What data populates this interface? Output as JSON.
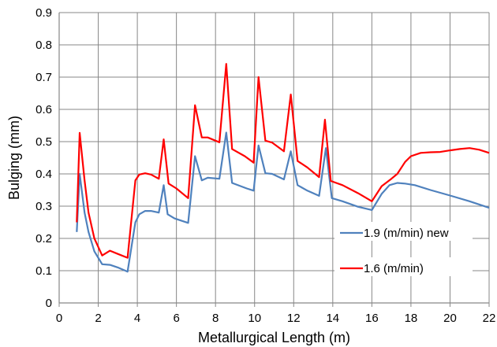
{
  "chart_data": {
    "type": "line",
    "title": "",
    "xlabel": "Metallurgical Length (m)",
    "ylabel": "Bulging (mm)",
    "xlim": [
      0,
      22
    ],
    "ylim": [
      0,
      0.9
    ],
    "x_ticks": [
      "0",
      "2",
      "4",
      "6",
      "8",
      "10",
      "12",
      "14",
      "16",
      "18",
      "20",
      "22"
    ],
    "y_ticks": [
      "0",
      "0.1",
      "0.2",
      "0.3",
      "0.4",
      "0.5",
      "0.6",
      "0.7",
      "0.8",
      "0.9"
    ],
    "grid": true,
    "legend_position": "right",
    "series": [
      {
        "name": "1.9 (m/min) new",
        "color": "#4F81BD",
        "points": [
          [
            0.9,
            0.22
          ],
          [
            1.05,
            0.4
          ],
          [
            1.3,
            0.28
          ],
          [
            1.5,
            0.22
          ],
          [
            1.8,
            0.16
          ],
          [
            2.2,
            0.12
          ],
          [
            2.6,
            0.118
          ],
          [
            3.0,
            0.11
          ],
          [
            3.5,
            0.097
          ],
          [
            3.9,
            0.25
          ],
          [
            4.1,
            0.275
          ],
          [
            4.4,
            0.285
          ],
          [
            4.7,
            0.285
          ],
          [
            5.1,
            0.28
          ],
          [
            5.35,
            0.365
          ],
          [
            5.55,
            0.275
          ],
          [
            5.9,
            0.262
          ],
          [
            6.6,
            0.248
          ],
          [
            6.95,
            0.455
          ],
          [
            7.3,
            0.38
          ],
          [
            7.6,
            0.388
          ],
          [
            8.2,
            0.385
          ],
          [
            8.55,
            0.528
          ],
          [
            8.85,
            0.372
          ],
          [
            9.6,
            0.355
          ],
          [
            9.95,
            0.348
          ],
          [
            10.2,
            0.488
          ],
          [
            10.55,
            0.402
          ],
          [
            10.9,
            0.4
          ],
          [
            11.5,
            0.383
          ],
          [
            11.85,
            0.47
          ],
          [
            12.2,
            0.365
          ],
          [
            12.7,
            0.348
          ],
          [
            13.3,
            0.332
          ],
          [
            13.65,
            0.48
          ],
          [
            13.95,
            0.325
          ],
          [
            14.5,
            0.315
          ],
          [
            15.3,
            0.298
          ],
          [
            16.0,
            0.288
          ],
          [
            16.5,
            0.338
          ],
          [
            16.9,
            0.365
          ],
          [
            17.3,
            0.372
          ],
          [
            17.7,
            0.37
          ],
          [
            18.2,
            0.365
          ],
          [
            19.0,
            0.35
          ],
          [
            20.0,
            0.333
          ],
          [
            21.0,
            0.315
          ],
          [
            22.0,
            0.295
          ]
        ]
      },
      {
        "name": "1.6 (m/min)",
        "color": "#FF0000",
        "points": [
          [
            0.9,
            0.25
          ],
          [
            1.05,
            0.527
          ],
          [
            1.3,
            0.38
          ],
          [
            1.5,
            0.28
          ],
          [
            1.8,
            0.2
          ],
          [
            2.2,
            0.147
          ],
          [
            2.6,
            0.162
          ],
          [
            3.0,
            0.152
          ],
          [
            3.5,
            0.14
          ],
          [
            3.9,
            0.38
          ],
          [
            4.1,
            0.398
          ],
          [
            4.4,
            0.402
          ],
          [
            4.7,
            0.398
          ],
          [
            5.1,
            0.385
          ],
          [
            5.35,
            0.507
          ],
          [
            5.6,
            0.37
          ],
          [
            6.0,
            0.355
          ],
          [
            6.6,
            0.325
          ],
          [
            6.95,
            0.613
          ],
          [
            7.3,
            0.513
          ],
          [
            7.6,
            0.513
          ],
          [
            8.2,
            0.498
          ],
          [
            8.55,
            0.741
          ],
          [
            8.85,
            0.477
          ],
          [
            9.5,
            0.455
          ],
          [
            9.95,
            0.435
          ],
          [
            10.2,
            0.7
          ],
          [
            10.55,
            0.503
          ],
          [
            10.9,
            0.497
          ],
          [
            11.5,
            0.47
          ],
          [
            11.85,
            0.646
          ],
          [
            12.2,
            0.44
          ],
          [
            12.7,
            0.42
          ],
          [
            13.3,
            0.39
          ],
          [
            13.6,
            0.568
          ],
          [
            13.9,
            0.378
          ],
          [
            14.5,
            0.365
          ],
          [
            15.3,
            0.34
          ],
          [
            16.0,
            0.315
          ],
          [
            16.5,
            0.362
          ],
          [
            17.0,
            0.385
          ],
          [
            17.3,
            0.4
          ],
          [
            17.7,
            0.437
          ],
          [
            18.0,
            0.455
          ],
          [
            18.5,
            0.465
          ],
          [
            19.0,
            0.467
          ],
          [
            19.5,
            0.468
          ],
          [
            20.0,
            0.473
          ],
          [
            20.5,
            0.477
          ],
          [
            21.0,
            0.48
          ],
          [
            21.5,
            0.475
          ],
          [
            22.0,
            0.465
          ]
        ]
      }
    ]
  }
}
